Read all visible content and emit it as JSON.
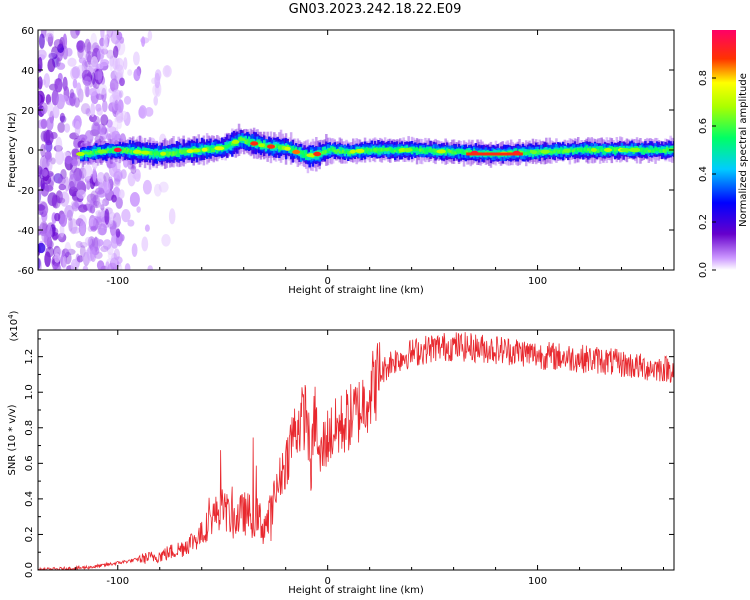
{
  "title": "GN03.2023.242.18.22.E09",
  "chart_data": [
    {
      "type": "heatmap",
      "xlabel": "Height of straight line (km)",
      "ylabel": "Frequency (Hz)",
      "xlim": [
        -138,
        165
      ],
      "ylim": [
        -60,
        60
      ],
      "xticks": [
        -100,
        0,
        100
      ],
      "yticks": [
        -60,
        -40,
        -20,
        0,
        20,
        40,
        60
      ],
      "colorbar": {
        "label": "Normalized spectral amplitude",
        "range": [
          0.0,
          1.0
        ],
        "ticks": [
          0.0,
          0.2,
          0.4,
          0.6,
          0.8
        ],
        "colormap": "rainbow",
        "colors": [
          "#ffffff",
          "#cc99ff",
          "#6600cc",
          "#0000ff",
          "#00ccff",
          "#00ff66",
          "#ffff00",
          "#ff0000",
          "#ff0066"
        ]
      },
      "ridge": {
        "x": [
          -118,
          -110,
          -100,
          -90,
          -80,
          -70,
          -60,
          -50,
          -42,
          -38,
          -30,
          -20,
          -15,
          -10,
          -5,
          0,
          10,
          20,
          40,
          60,
          80,
          100,
          120,
          140,
          165
        ],
        "y": [
          -2,
          -1,
          0,
          -1,
          -2,
          -1,
          0,
          1,
          5,
          4,
          2,
          1,
          -1,
          -3,
          -2,
          0,
          -1,
          0,
          0,
          -1,
          -2,
          -1,
          0,
          0,
          0
        ],
        "peaks": [
          {
            "x": -100,
            "amp": 0.95
          },
          {
            "x": -35,
            "amp": 0.9
          },
          {
            "x": -27,
            "amp": 0.9
          },
          {
            "x": -15,
            "amp": 0.85
          },
          {
            "x": -5,
            "amp": 0.9
          },
          {
            "x": 70,
            "amp": 0.95
          },
          {
            "x": 90,
            "amp": 0.95
          }
        ]
      },
      "noise_region": {
        "x": [
          -138,
          -98
        ],
        "y": [
          -60,
          60
        ]
      }
    },
    {
      "type": "line",
      "xlabel": "Height of straight line (km)",
      "ylabel": "SNR (10 * v/v)",
      "scale_label": "(x10",
      "scale_exp": "4",
      "scale_close": ")",
      "xlim": [
        -138,
        165
      ],
      "ylim": [
        0,
        1.35
      ],
      "xticks": [
        -100,
        0,
        100
      ],
      "yticks": [
        0.0,
        0.2,
        0.4,
        0.6,
        0.8,
        1.0,
        1.2
      ],
      "color": "#e8282e",
      "x": [
        -138,
        -120,
        -110,
        -100,
        -90,
        -80,
        -70,
        -60,
        -55,
        -50,
        -45,
        -40,
        -35,
        -30,
        -27,
        -25,
        -22,
        -20,
        -17,
        -15,
        -12,
        -10,
        -8,
        -6,
        -4,
        -2,
        0,
        5,
        10,
        15,
        20,
        25,
        30,
        40,
        50,
        60,
        70,
        80,
        90,
        100,
        110,
        120,
        130,
        140,
        150,
        165
      ],
      "y": [
        0.0,
        0.01,
        0.02,
        0.04,
        0.06,
        0.08,
        0.12,
        0.2,
        0.3,
        0.35,
        0.28,
        0.32,
        0.3,
        0.25,
        0.3,
        0.4,
        0.55,
        0.6,
        0.75,
        0.8,
        0.85,
        0.9,
        0.55,
        0.9,
        0.6,
        0.7,
        0.75,
        0.8,
        0.85,
        0.9,
        1.0,
        1.1,
        1.17,
        1.22,
        1.25,
        1.26,
        1.25,
        1.24,
        1.23,
        1.21,
        1.2,
        1.19,
        1.18,
        1.16,
        1.14,
        1.13
      ]
    }
  ]
}
